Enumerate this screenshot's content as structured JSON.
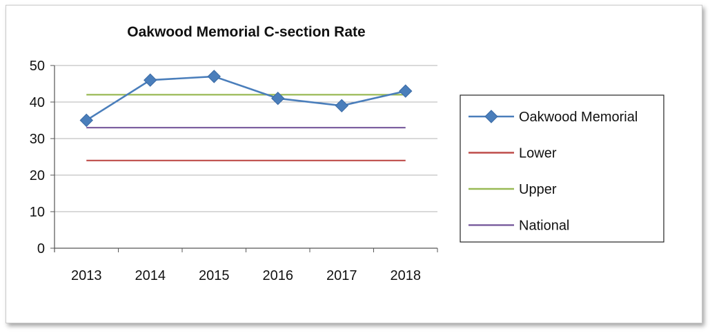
{
  "chart_data": {
    "type": "line",
    "title": "Oakwood Memorial C-section Rate",
    "categories": [
      "2013",
      "2014",
      "2015",
      "2016",
      "2017",
      "2018"
    ],
    "ylim": [
      0,
      50
    ],
    "yticks": [
      0,
      10,
      20,
      30,
      40,
      50
    ],
    "grid": true,
    "legend_position": "right",
    "series": [
      {
        "name": "Oakwood Memorial",
        "values": [
          35,
          46,
          47,
          41,
          39,
          43
        ],
        "color": "#4a7ebb",
        "marker": "diamond"
      },
      {
        "name": "Lower",
        "values": [
          24,
          24,
          24,
          24,
          24,
          24
        ],
        "color": "#be4b48",
        "marker": "none"
      },
      {
        "name": "Upper",
        "values": [
          42,
          42,
          42,
          42,
          42,
          42
        ],
        "color": "#98b954",
        "marker": "none"
      },
      {
        "name": "National",
        "values": [
          33,
          33,
          33,
          33,
          33,
          33
        ],
        "color": "#7d60a0",
        "marker": "none"
      }
    ]
  }
}
